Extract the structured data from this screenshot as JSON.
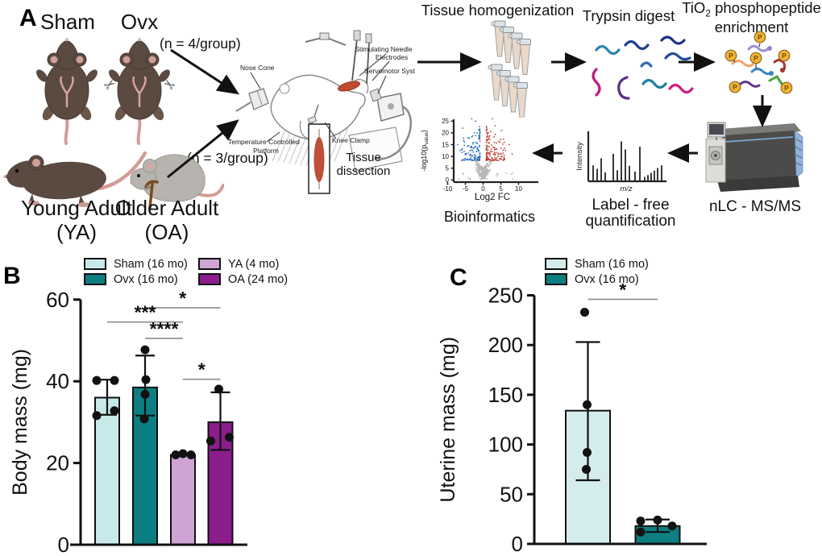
{
  "panels": {
    "a": "A",
    "b": "B",
    "c": "C"
  },
  "colors": {
    "teal_light": "#c9e8e9",
    "teal_dark": "#0d7e82",
    "purple_light": "#cfa3d4",
    "purple_dark": "#8c1d8c",
    "volcano_blue": "#2e6db4",
    "volcano_red": "#c23b2e",
    "volcano_gray": "#b8b8b8",
    "phospho_gold": "#f2b233"
  },
  "panel_a": {
    "sham": "Sham",
    "ovx": "Ovx",
    "young_adult": "Young Adult",
    "ya": "(YA)",
    "older_adult": "Older Adult",
    "oa": "(OA)",
    "n_top": "(n = 4/group)",
    "n_bottom": "(n = 3/group)",
    "surgery": {
      "nose_cone": "Nose Cone",
      "stim1": "Stimulating Needle",
      "stim2": "Electrodes",
      "servo": "Servomotor System",
      "temp1": "Temperature Controlled",
      "temp2": "Platform",
      "knee": "Knee Clamp",
      "dissect1": "Tissue",
      "dissect2": "dissection"
    },
    "steps": {
      "homogenization": "Tissue homogenization",
      "trypsin": "Trypsin digest",
      "tio2_base": "TiO",
      "tio2_sub": "2",
      "tio2_rest": " phosphopeptide",
      "tio2_line2": "enrichment",
      "ms": "nLC - MS/MS",
      "lfq1": "Label - free",
      "lfq2": "quantification",
      "bioinfo": "Bioinformatics"
    },
    "spectrum": {
      "ylabel": "Intensity",
      "xlabel": "m/z",
      "bars_x": [
        6,
        11,
        16,
        21,
        31,
        36,
        41,
        46,
        51,
        58,
        64,
        70,
        74,
        78,
        82,
        86,
        91
      ],
      "bars_h": [
        0.36,
        0.28,
        0.52,
        0.2,
        0.62,
        0.25,
        0.9,
        0.72,
        0.35,
        0.22,
        0.78,
        0.1,
        0.14,
        0.19,
        0.24,
        0.3,
        0.36
      ]
    },
    "volcano": {
      "ylabel_main": "-log10(p",
      "ylabel_sub": "value",
      "ylabel_close": ")",
      "xlabel": "Log2 FC",
      "yticks": [
        0,
        5,
        10,
        15,
        20,
        25
      ],
      "xticks": [
        -10,
        -5,
        0,
        5,
        10
      ]
    }
  },
  "chart_data": [
    {
      "panel": "B",
      "type": "bar",
      "title": "",
      "ylabel": "Body mass (mg)",
      "ylim": [
        0,
        60
      ],
      "yticks": [
        0,
        20,
        40,
        60
      ],
      "categories": [
        "Sham (16 mo)",
        "Ovx (16 mo)",
        "YA (4 mo)",
        "OA (24 mo)"
      ],
      "colors": [
        "#c9e8e9",
        "#0d7e82",
        "#cfa3d4",
        "#8c1d8c"
      ],
      "values": [
        36,
        38.5,
        22,
        30
      ],
      "errors": [
        [
          31.8,
          40.4
        ],
        [
          31.6,
          46.3
        ],
        null,
        [
          23.2,
          37.3
        ]
      ],
      "points": [
        [
          40.2,
          40.2,
          31.6,
          32.8
        ],
        [
          47.7,
          40.4,
          36.8,
          30.8
        ],
        [
          22,
          22.3,
          22
        ],
        [
          38.1,
          25.4,
          26.3
        ]
      ],
      "point_dx": [
        [
          -13,
          9,
          -13,
          9
        ],
        [
          0,
          1,
          0,
          -1
        ],
        [
          -9,
          0,
          10
        ],
        [
          -2,
          -12,
          11
        ]
      ],
      "significance": [
        {
          "i": 1,
          "j": 3,
          "label": "*",
          "y": 58
        },
        {
          "i": 0,
          "j": 2,
          "label": "***",
          "y": 54.5
        },
        {
          "i": 1,
          "j": 2,
          "label": "****",
          "y": 50.5
        },
        {
          "i": 2,
          "j": 3,
          "label": "*",
          "y": 40.5
        }
      ],
      "legend": [
        {
          "label": "Sham (16 mo)",
          "color": "#c9e8e9"
        },
        {
          "label": "Ovx (16 mo)",
          "color": "#0d7e82"
        },
        {
          "label": "YA (4 mo)",
          "color": "#cfa3d4"
        },
        {
          "label": "OA (24 mo)",
          "color": "#8c1d8c"
        }
      ],
      "legend_order": [
        0,
        2,
        1,
        3
      ]
    },
    {
      "panel": "C",
      "type": "bar",
      "title": "",
      "ylabel": "Uterine mass (mg)",
      "ylim": [
        0,
        250
      ],
      "yticks": [
        0,
        50,
        100,
        150,
        200,
        250
      ],
      "categories": [
        "Sham (16 mo)",
        "Ovx (16 mo)"
      ],
      "colors": [
        "#d5ecec",
        "#0d7e82"
      ],
      "values": [
        134,
        18
      ],
      "errors": [
        [
          64,
          203
        ],
        [
          12,
          24.5
        ]
      ],
      "points": [
        [
          233,
          140,
          92,
          75
        ],
        [
          23,
          24,
          18,
          12
        ]
      ],
      "point_dx": [
        [
          -4,
          -1,
          -1,
          -2
        ],
        [
          -21,
          0,
          18,
          -21
        ]
      ],
      "significance": [
        {
          "i": 0,
          "j": 1,
          "label": "*",
          "y": 246
        }
      ],
      "legend": [
        {
          "label": "Sham (16 mo)",
          "color": "#d5ecec"
        },
        {
          "label": "Ovx (16 mo)",
          "color": "#0d7e82"
        }
      ],
      "legend_order": [
        0,
        1
      ]
    }
  ]
}
